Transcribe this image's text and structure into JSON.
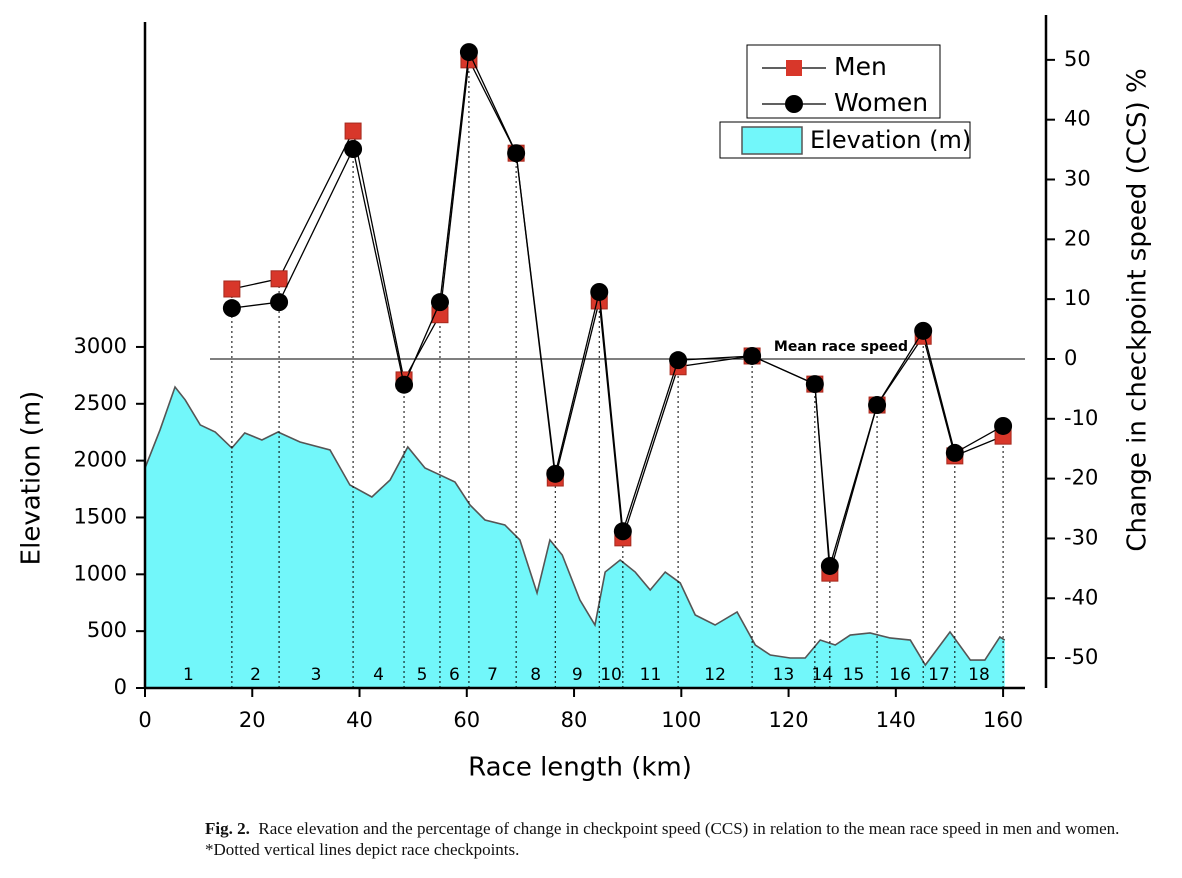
{
  "chart_data": {
    "type": "line",
    "x_label": "Race length (km)",
    "y_label": "Elevation (m)",
    "y2_label": "Change in checkpoint speed (CCS) %",
    "xlim": [
      0,
      168
    ],
    "xticks": [
      0,
      20,
      40,
      60,
      80,
      100,
      120,
      140,
      160
    ],
    "ylim": [
      0,
      5920
    ],
    "yticks": [
      0,
      500,
      1000,
      1500,
      2000,
      2500,
      3000
    ],
    "y2lim": [
      -55,
      57.5
    ],
    "y2ticks": [
      -50,
      -40,
      -30,
      -20,
      -10,
      0,
      10,
      20,
      30,
      40,
      50
    ],
    "legend": "upper right",
    "annotation": "Mean race speed",
    "annotation_value": 0,
    "x": [
      16.2,
      25.0,
      38.8,
      48.3,
      55.0,
      60.4,
      69.2,
      76.5,
      84.7,
      89.1,
      99.4,
      113.2,
      124.9,
      127.7,
      136.5,
      145.1,
      151.0,
      160.0
    ],
    "segment_labels": [
      "1",
      "2",
      "3",
      "4",
      "5",
      "6",
      "7",
      "8",
      "9",
      "10",
      "11",
      "12",
      "13",
      "14",
      "15",
      "16",
      "17",
      "18"
    ],
    "elevation": {
      "name": "Elevation (m)",
      "color": "#72f7fa",
      "x": [
        0,
        2.8,
        5.6,
        7.5,
        10.3,
        13.1,
        16.2,
        18.6,
        21.8,
        24.8,
        28.9,
        34.5,
        38.2,
        42.3,
        45.7,
        49.0,
        52.2,
        55.0,
        57.8,
        60.6,
        63.4,
        67.1,
        69.9,
        73.1,
        75.5,
        77.8,
        81.1,
        83.9,
        85.8,
        88.6,
        91.4,
        94.2,
        97.0,
        99.8,
        102.6,
        106.3,
        110.4,
        113.8,
        116.6,
        120.3,
        123.1,
        125.9,
        128.7,
        131.5,
        135.2,
        138.9,
        142.7,
        145.5,
        150.1,
        153.9,
        156.6,
        159.4,
        160.3
      ],
      "values": [
        1935,
        2270,
        2648,
        2534,
        2314,
        2252,
        2111,
        2243,
        2182,
        2252,
        2164,
        2094,
        1786,
        1680,
        1830,
        2120,
        1935,
        1874,
        1812,
        1610,
        1478,
        1434,
        1302,
        836,
        1302,
        1170,
        774,
        554,
        1020,
        1126,
        1020,
        862,
        1020,
        924,
        642,
        554,
        669,
        378,
        290,
        264,
        264,
        422,
        378,
        466,
        484,
        440,
        422,
        202,
        493,
        246,
        246,
        449,
        422
      ]
    },
    "series": [
      {
        "name": "Men",
        "color": "#d8372a",
        "axis": "y2",
        "values": [
          11.7,
          13.4,
          38.1,
          -3.5,
          7.4,
          50.0,
          34.4,
          -19.9,
          9.7,
          -29.9,
          -1.3,
          0.5,
          -4.2,
          -35.8,
          -7.7,
          3.8,
          -16.2,
          -12.9
        ]
      },
      {
        "name": "Women",
        "color": "#000000",
        "axis": "y2",
        "values": [
          8.5,
          9.5,
          35.1,
          -4.3,
          9.5,
          51.3,
          34.4,
          -19.2,
          11.2,
          -28.8,
          -0.2,
          0.5,
          -4.2,
          -34.6,
          -7.7,
          4.7,
          -15.7,
          -11.2
        ]
      }
    ]
  },
  "caption_label": "Fig. 2.",
  "caption": "Race elevation and the percentage of change in checkpoint speed (CCS) in relation to the mean race speed in men and women. *Dotted vertical lines depict race checkpoints."
}
